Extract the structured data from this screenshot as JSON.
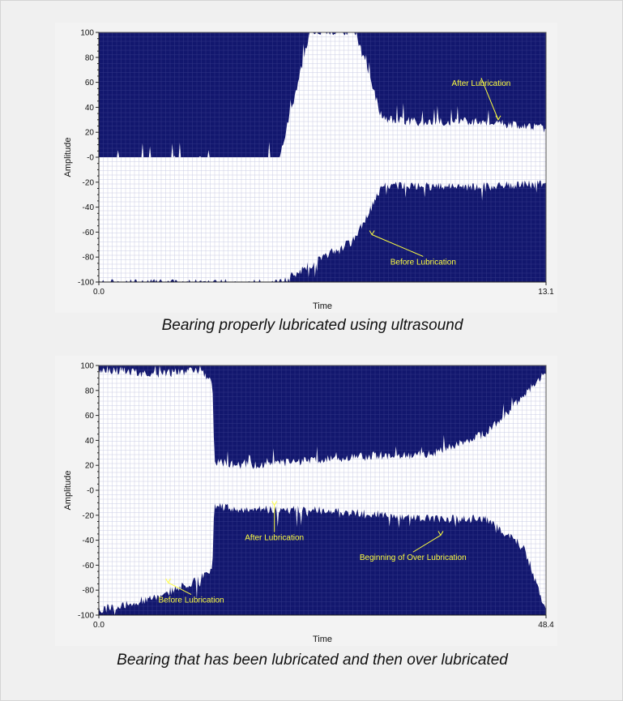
{
  "captions": [
    "Bearing properly lubricated using ultrasound",
    "Bearing that has been lubricated and then over lubricated"
  ],
  "colors": {
    "signal_fill": "#12176e",
    "grid": "#6a6fb2",
    "plot_bg": "#ffffff",
    "annotation": "#ffff40",
    "panel_bg": "#f3f3f3"
  },
  "chart_data": [
    {
      "type": "area",
      "title": "",
      "xlabel": "Time",
      "ylabel": "Amplitude",
      "xlim": [
        0.0,
        13.1
      ],
      "ylim": [
        -100,
        100
      ],
      "x_tick_labels": [
        "0.0",
        "13.1"
      ],
      "y_tick_labels": [
        "100",
        "80",
        "60",
        "40",
        "20",
        "-0",
        "-20",
        "-40",
        "-60",
        "-80",
        "-100"
      ],
      "grid": true,
      "series": [
        {
          "x": [
            0.0,
            2.5,
            5.3,
            6.2,
            7.5,
            8.3,
            9.4,
            10.5,
            11.7,
            13.1
          ],
          "upper": [
            0,
            0,
            0,
            100,
            100,
            30,
            27,
            28,
            26,
            22
          ],
          "lower": [
            -100,
            -100,
            -100,
            -85,
            -65,
            -22,
            -22,
            -23,
            -22,
            -20
          ]
        }
      ],
      "annotations": [
        {
          "text": "After Lubrication",
          "x": 11.2,
          "y": 57,
          "target_x": 11.7,
          "target_y": 30
        },
        {
          "text": "Before Lubrication",
          "x": 9.5,
          "y": -86,
          "target_x": 8.0,
          "target_y": -62
        }
      ]
    },
    {
      "type": "area",
      "title": "",
      "xlabel": "Time",
      "ylabel": "Amplitude",
      "xlim": [
        0.0,
        48.4
      ],
      "ylim": [
        -100,
        100
      ],
      "x_tick_labels": [
        "0.0",
        "48.4"
      ],
      "y_tick_labels": [
        "100",
        "80",
        "60",
        "40",
        "20",
        "-0",
        "-20",
        "-40",
        "-60",
        "-80",
        "-100"
      ],
      "grid": true,
      "series": [
        {
          "x": [
            0.0,
            6.0,
            11.0,
            12.3,
            12.5,
            16.0,
            24.0,
            30.0,
            36.0,
            42.0,
            46.0,
            48.4
          ],
          "upper": [
            96,
            92,
            95,
            85,
            22,
            18,
            24,
            26,
            28,
            45,
            75,
            95
          ],
          "lower": [
            -95,
            -85,
            -70,
            -60,
            -12,
            -14,
            -15,
            -18,
            -22,
            -22,
            -45,
            -95
          ]
        }
      ],
      "annotations": [
        {
          "text": "After Lubrication",
          "x": 19.0,
          "y": -40,
          "target_x": 19.0,
          "target_y": -12
        },
        {
          "text": "Beginning of Over Lubrication",
          "x": 34.0,
          "y": -56,
          "target_x": 37.0,
          "target_y": -36
        },
        {
          "text": "Before Lubrication",
          "x": 10.0,
          "y": -90,
          "target_x": 7.5,
          "target_y": -74
        }
      ]
    }
  ]
}
